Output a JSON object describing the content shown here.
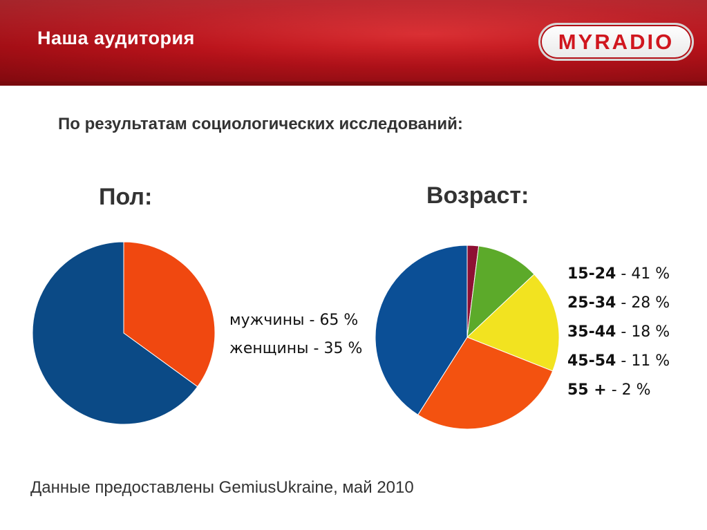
{
  "header": {
    "title": "Наша аудитория",
    "logo_my": "MY",
    "logo_radio": "RADIO",
    "colors": {
      "banner": "#b8121a",
      "logo_text": "#d0161e"
    }
  },
  "subtitle": "По результатам социологических исследований:",
  "chart_data": [
    {
      "type": "pie",
      "title": "Пол:",
      "categories": [
        "мужчины",
        "женщины"
      ],
      "values": [
        65,
        35
      ],
      "unit": "%",
      "colors": [
        "#0b4a86",
        "#f04810"
      ],
      "legend": [
        {
          "label": "мужчины",
          "sep": " - ",
          "value": "65 %"
        },
        {
          "label": "женщины",
          "sep": " - ",
          "value": "35 %"
        }
      ]
    },
    {
      "type": "pie",
      "title": "Возраст:",
      "categories": [
        "15-24",
        "25-34",
        "35-44",
        "45-54",
        "55 +"
      ],
      "values": [
        41,
        28,
        18,
        11,
        2
      ],
      "unit": "%",
      "colors": [
        "#0b4f96",
        "#f35210",
        "#f2e320",
        "#5caa2a",
        "#8e1033"
      ],
      "legend": [
        {
          "label": "15-24",
          "sep": " - ",
          "value": "41 %"
        },
        {
          "label": "25-34",
          "sep": " - ",
          "value": "28 %"
        },
        {
          "label": "35-44",
          "sep": " - ",
          "value": "18 %"
        },
        {
          "label": "45-54",
          "sep": " - ",
          "value": "11 %"
        },
        {
          "label": "55 +",
          "sep": " - ",
          "value": "2 %"
        }
      ]
    }
  ],
  "source": "Данные предоставлены GemiusUkraine, май 2010"
}
